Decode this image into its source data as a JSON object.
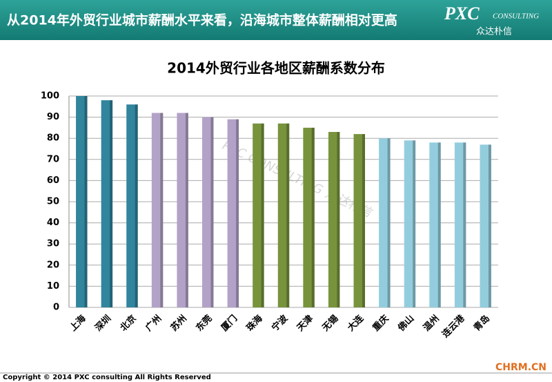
{
  "header": {
    "title": "从2014年外贸行业城市薪酬水平来看，沿海城市整体薪酬相对更高",
    "logo": "PXC",
    "logo_sub": "CONSULTING",
    "logo_cn": "众达朴信"
  },
  "chart_data": {
    "type": "bar",
    "title": "2014外贸行业各地区薪酬系数分布",
    "categories": [
      "上海",
      "深圳",
      "北京",
      "广州",
      "苏州",
      "东莞",
      "厦门",
      "珠海",
      "宁波",
      "天津",
      "无锡",
      "大连",
      "重庆",
      "佛山",
      "温州",
      "连云港",
      "青岛"
    ],
    "values": [
      100,
      98,
      96,
      92,
      92,
      90,
      89,
      87,
      87,
      85,
      83,
      82,
      80,
      79,
      78,
      78,
      77
    ],
    "colors": [
      "#31859c",
      "#31859c",
      "#31859c",
      "#b3a2c7",
      "#b3a2c7",
      "#b3a2c7",
      "#b3a2c7",
      "#77933c",
      "#77933c",
      "#77933c",
      "#77933c",
      "#77933c",
      "#93cddd",
      "#93cddd",
      "#93cddd",
      "#93cddd",
      "#93cddd"
    ],
    "ylim": [
      0,
      100
    ],
    "yticks": [
      0,
      10,
      20,
      30,
      40,
      50,
      60,
      70,
      80,
      90,
      100
    ],
    "grid": true,
    "watermark": "PXC CONSULTING 众达朴信"
  },
  "footer": {
    "copyright": "Copyright © 2014  PXC consulting All Rights Reserved",
    "source": "CHRM.CN"
  }
}
